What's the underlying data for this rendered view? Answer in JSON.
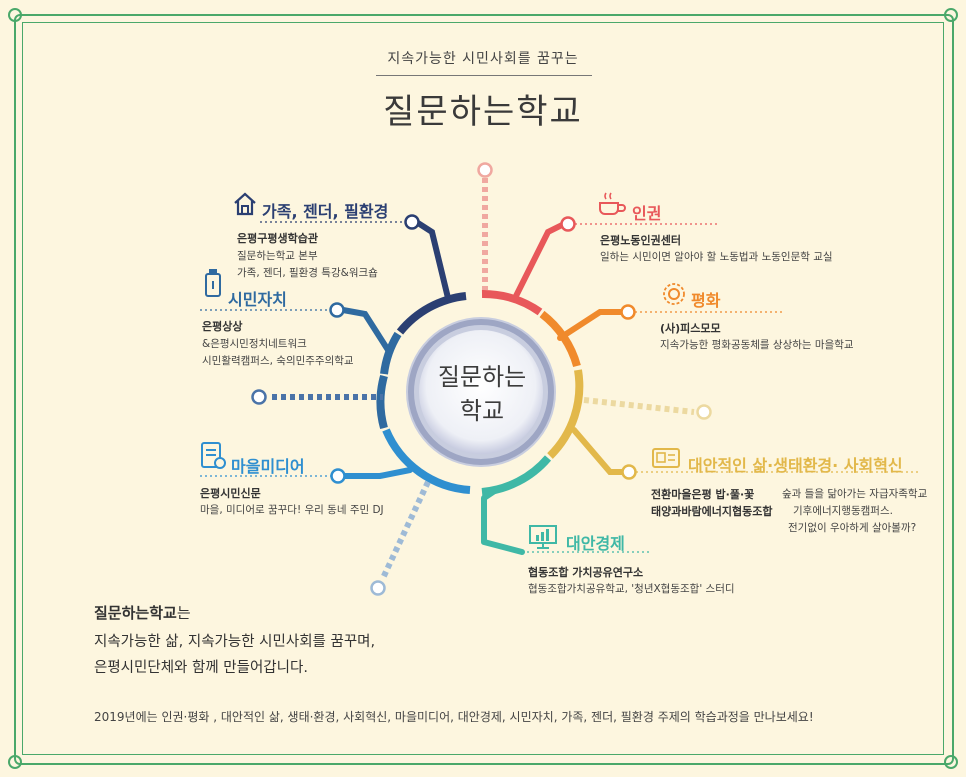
{
  "header": {
    "subtitle": "지속가능한 시민사회를 꿈꾸는",
    "title": "질문하는학교"
  },
  "center": {
    "line1": "질문하는",
    "line2": "학교"
  },
  "topics": {
    "family": {
      "title": "가족, 젠더, 필환경",
      "org": "은평구평생학습관",
      "line1": "질문하는학교 본부",
      "line2": "가족, 젠더, 필환경 특강&워크숍",
      "color": "#2b3f72"
    },
    "citizen": {
      "title": "시민자치",
      "org": "은평상상",
      "line1": "&은평시민정치네트워크",
      "line2": "시민활력캠퍼스, 숙의민주주의학교",
      "color": "#2f6aa0"
    },
    "media": {
      "title": "마을미디어",
      "org": "은평시민신문",
      "line1": "마을, 미디어로 꿈꾸다! 우리 동네 주민 DJ",
      "color": "#2f8fd0"
    },
    "rights": {
      "title": "인권",
      "org": "은평노동인권센터",
      "line1": "일하는 시민이면 알아야 할 노동법과 노동인문학 교실",
      "color": "#e8585a"
    },
    "peace": {
      "title": "평화",
      "org": "(사)피스모모",
      "line1": "지속가능한 평화공동체를 상상하는 마을학교",
      "color": "#f08a2c"
    },
    "alt": {
      "title": "대안적인 삶·생태환경· 사회혁신",
      "org1": "전환마을은평 밥·풀·꽃",
      "desc1": "숲과 들을 닮아가는 자급자족학교",
      "org2": "태양과바람에너지협동조합",
      "desc2": "기후에너지행동캠퍼스.",
      "line3": "전기없이 우아하게 살아볼까?",
      "color": "#e2b84a"
    },
    "economy": {
      "title": "대안경제",
      "org": "협동조합 가치공유연구소",
      "line1": "협동조합가치공유학교, '청년X협동조합' 스터디",
      "color": "#3fb8a6"
    }
  },
  "intro": {
    "bold": "질문하는학교",
    "suffix": "는",
    "line2": "지속가능한 삶, 지속가능한 시민사회를 꿈꾸며,",
    "line3": "은평시민단체와 함께 만들어갑니다."
  },
  "footer": "2019년에는 인권·평화 , 대안적인 삶, 생태·환경, 사회혁신, 마을미디어, 대안경제, 시민자치, 가족, 젠더, 필환경 주제의 학습과정을 만나보세요!",
  "colors": {
    "frame": "#4aa86a",
    "background": "#fdf6df"
  }
}
